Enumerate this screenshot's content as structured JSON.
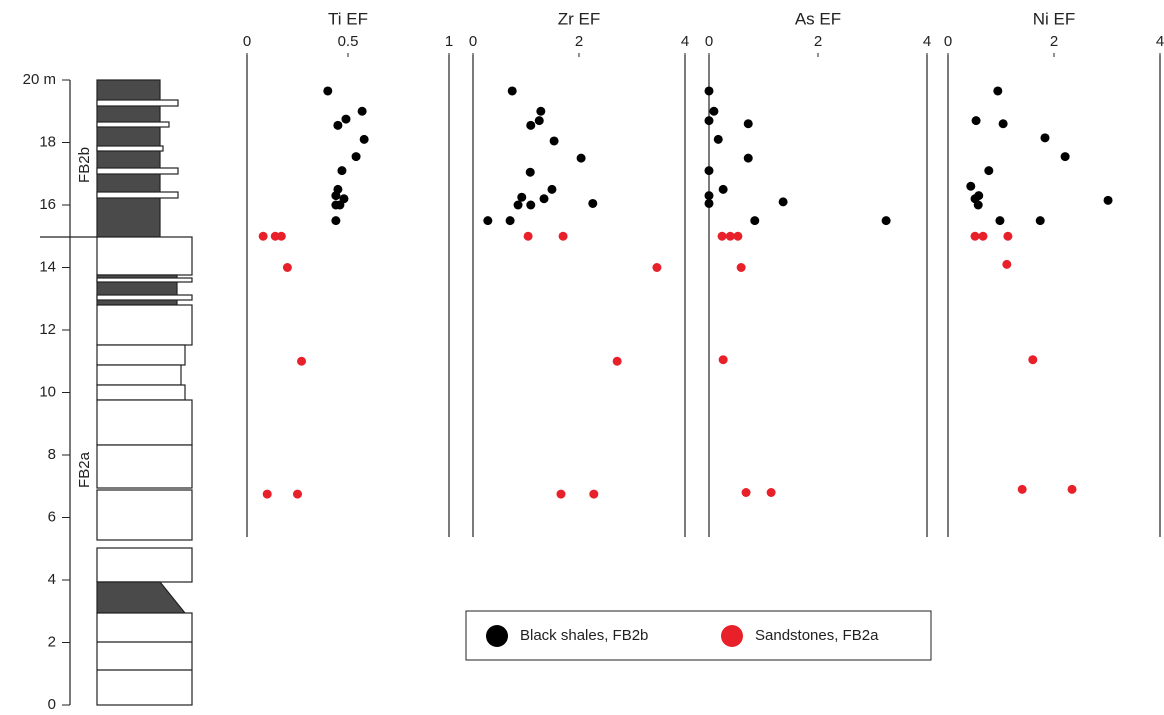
{
  "chart_data": {
    "type": "scatter",
    "ylim": [
      0,
      20
    ],
    "yticks": [
      0,
      2,
      4,
      6,
      8,
      10,
      12,
      14,
      16,
      {
        "value": 20,
        "label": "20 m"
      },
      18
    ],
    "units": [
      "FB2b",
      "FB2a"
    ],
    "series": [
      {
        "name": "Black shales, FB2b",
        "color": "#000000"
      },
      {
        "name": "Sandstones, FB2a",
        "color": "#e8202a"
      }
    ],
    "panels": [
      {
        "title": "Ti EF",
        "xlim": [
          0,
          1
        ],
        "xticks": [
          0,
          0.5,
          1
        ],
        "points": [
          {
            "x": [
              0.4,
              0.57,
              0.49,
              0.45,
              0.58,
              0.54,
              0.47,
              0.45,
              0.48,
              0.44,
              0.46,
              0.44,
              0.44
            ],
            "y": [
              19.65,
              19.0,
              18.75,
              18.55,
              18.1,
              17.55,
              17.1,
              16.5,
              16.2,
              16.3,
              16.0,
              16.0,
              15.5
            ]
          },
          {
            "x": [
              0.08,
              0.14,
              0.17,
              0.2,
              0.27,
              0.1,
              0.25
            ],
            "y": [
              15.0,
              15.0,
              15.0,
              14.0,
              11.0,
              6.75,
              6.75
            ]
          }
        ]
      },
      {
        "title": "Zr EF",
        "xlim": [
          0,
          4
        ],
        "xticks": [
          0,
          2,
          4
        ],
        "points": [
          {
            "x": [
              0.74,
              1.28,
              1.25,
              1.09,
              1.53,
              2.04,
              1.08,
              1.49,
              0.92,
              1.34,
              0.85,
              1.09,
              2.26,
              0.28,
              0.7
            ],
            "y": [
              19.65,
              19.0,
              18.7,
              18.55,
              18.05,
              17.5,
              17.05,
              16.5,
              16.25,
              16.2,
              16.0,
              16.0,
              16.05,
              15.5,
              15.5
            ]
          },
          {
            "x": [
              1.04,
              1.7,
              3.47,
              2.72,
              1.66,
              2.28
            ],
            "y": [
              15.0,
              15.0,
              14.0,
              11.0,
              6.75,
              6.75
            ]
          }
        ]
      },
      {
        "title": "As EF",
        "xlim": [
          0,
          4
        ],
        "xticks": [
          0,
          2,
          4
        ],
        "points": [
          {
            "x": [
              0.0,
              0.09,
              0.0,
              0.72,
              0.17,
              0.72,
              0.0,
              0.26,
              0.0,
              0.0,
              1.36,
              0.84,
              3.25
            ],
            "y": [
              19.65,
              19.0,
              18.7,
              18.6,
              18.1,
              17.5,
              17.1,
              16.5,
              16.3,
              16.05,
              16.1,
              15.5,
              15.5
            ]
          },
          {
            "x": [
              0.24,
              0.39,
              0.53,
              0.59,
              0.26,
              0.68,
              1.14
            ],
            "y": [
              15.0,
              15.0,
              15.0,
              14.0,
              11.05,
              6.8,
              6.8
            ]
          }
        ]
      },
      {
        "title": "Ni EF",
        "xlim": [
          0,
          4
        ],
        "xticks": [
          0,
          2,
          4
        ],
        "points": [
          {
            "x": [
              0.94,
              0.53,
              1.04,
              1.83,
              2.21,
              0.77,
              0.43,
              0.58,
              0.51,
              0.57,
              3.02,
              0.98,
              1.74
            ],
            "y": [
              19.65,
              18.7,
              18.6,
              18.15,
              17.55,
              17.1,
              16.6,
              16.3,
              16.2,
              16.0,
              16.15,
              15.5,
              15.5
            ]
          },
          {
            "x": [
              0.51,
              0.66,
              1.13,
              1.11,
              1.6,
              1.4,
              2.34
            ],
            "y": [
              15.0,
              15.0,
              15.0,
              14.1,
              11.05,
              6.9,
              6.9
            ]
          }
        ]
      }
    ]
  }
}
